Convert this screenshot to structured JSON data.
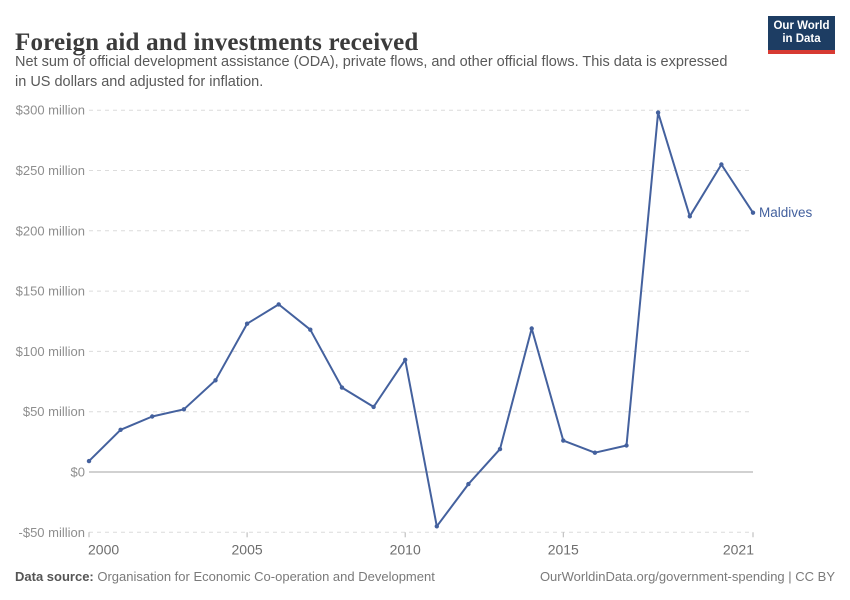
{
  "header": {
    "title": "Foreign aid and investments received",
    "subtitle": {
      "line1": "Net sum of official development assistance (ODA), private flows, and other official flows. This data is expressed",
      "line2": "in US dollars and adjusted for inflation."
    },
    "logo": {
      "line1": "Our World",
      "line2": "in Data",
      "bg_color": "#1d3d63",
      "accent_color": "#d73a32"
    }
  },
  "chart_data": {
    "type": "line",
    "title": "Foreign aid and investments received",
    "xlabel": "",
    "ylabel": "",
    "xlim": [
      2000,
      2021
    ],
    "ylim": [
      -50,
      300
    ],
    "grid": "horizontal-dashed",
    "x": [
      2000,
      2001,
      2002,
      2003,
      2004,
      2005,
      2006,
      2007,
      2008,
      2009,
      2010,
      2011,
      2012,
      2013,
      2014,
      2015,
      2016,
      2017,
      2018,
      2019,
      2020,
      2021
    ],
    "series": [
      {
        "name": "Maldives",
        "color": "#44619e",
        "unit": "US$ million",
        "values": [
          9,
          35,
          46,
          52,
          76,
          123,
          139,
          118,
          70,
          54,
          93,
          -45,
          -10,
          19,
          119,
          26,
          16,
          22,
          298,
          212,
          255,
          215
        ]
      }
    ],
    "y_ticks": [
      -50,
      0,
      50,
      100,
      150,
      200,
      250,
      300
    ],
    "y_tick_labels": [
      "-$50 million",
      "$0",
      "$50 million",
      "$100 million",
      "$150 million",
      "$200 million",
      "$250 million",
      "$300 million"
    ],
    "x_ticks": [
      2000,
      2005,
      2010,
      2015,
      2021
    ],
    "x_tick_labels": [
      "2000",
      "2005",
      "2010",
      "2015",
      "2021"
    ],
    "entity_label": "Maldives"
  },
  "footer": {
    "source_label": "Data source:",
    "source_text": " Organisation for Economic Co-operation and Development",
    "right_text": "OurWorldinData.org/government-spending | CC BY"
  }
}
